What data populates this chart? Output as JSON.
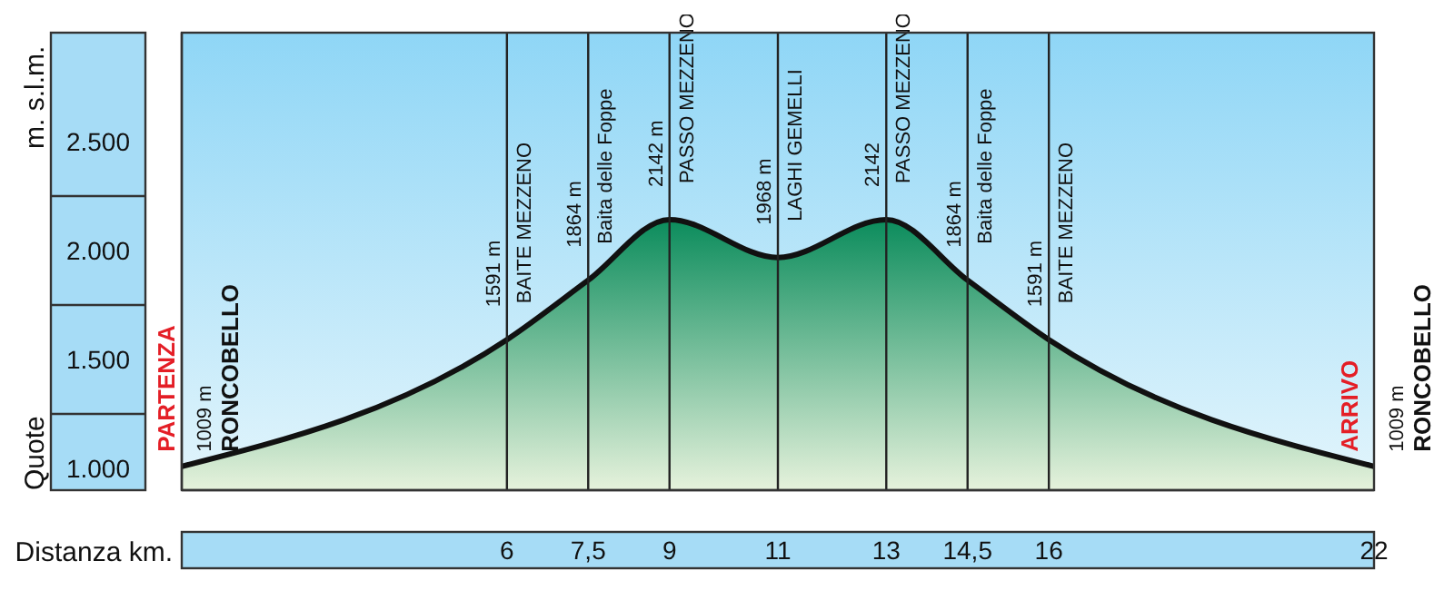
{
  "chart_data": {
    "type": "area",
    "xlabel": "Distanza km.",
    "ylabel": "Quote",
    "x": [
      0,
      6,
      7.5,
      9,
      11,
      13,
      14.5,
      16,
      22
    ],
    "values": [
      1009,
      1591,
      1864,
      2142,
      1968,
      2142,
      1864,
      1591,
      1009
    ],
    "value_labels": [
      "1009 m",
      "1591 m",
      "1864 m",
      "2142 m",
      "1968 m",
      "2142",
      "1864 m",
      "1591 m",
      "1009 m"
    ],
    "color": "#0b8c5c",
    "xlim": [
      0,
      22
    ],
    "xticks": [
      6,
      {
        "value": 7.5,
        "label": "7,5"
      },
      9,
      11,
      13,
      {
        "value": 14.5,
        "label": "14,5"
      },
      16,
      22
    ],
    "ylim": [
      900,
      3000
    ],
    "yticks": [
      {
        "value": 1000,
        "label": "1.000"
      },
      {
        "value": 1500,
        "label": "1.500"
      },
      {
        "value": 2000,
        "label": "2.000"
      },
      {
        "value": 2500,
        "label": "2.500"
      }
    ],
    "ref_lines": [
      {
        "axis": "x",
        "value": 6,
        "label": "BAITE MEZZENO"
      },
      {
        "axis": "x",
        "value": 7.5,
        "label": "Baita delle Foppe"
      },
      {
        "axis": "x",
        "value": 9,
        "label": "PASSO MEZZENO"
      },
      {
        "axis": "x",
        "value": 11,
        "label": "LAGHI GEMELLI"
      },
      {
        "axis": "x",
        "value": 13,
        "label": "PASSO MEZZENO"
      },
      {
        "axis": "x",
        "value": 14.5,
        "label": "Baita delle Foppe"
      },
      {
        "axis": "x",
        "value": 16,
        "label": "BAITE MEZZENO"
      }
    ],
    "annotations": [
      "m. s.l.m.",
      "PARTENZA",
      "RONCOBELLO",
      "ARRIVO",
      "RONCOBELLO"
    ],
    "grid": false,
    "legend": false
  }
}
